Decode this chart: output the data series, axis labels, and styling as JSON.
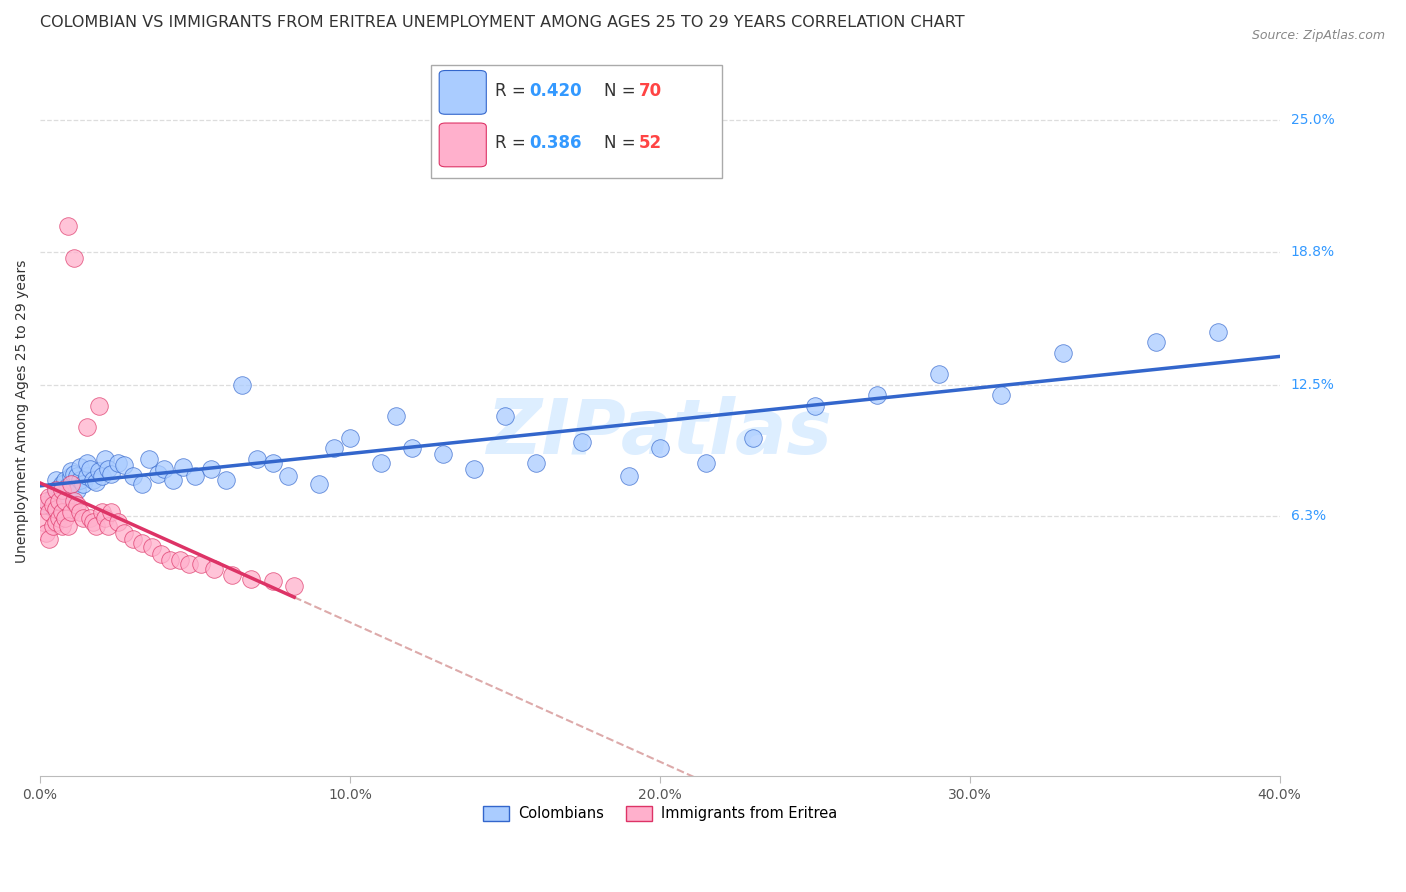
{
  "title": "COLOMBIAN VS IMMIGRANTS FROM ERITREA UNEMPLOYMENT AMONG AGES 25 TO 29 YEARS CORRELATION CHART",
  "source": "Source: ZipAtlas.com",
  "ylabel": "Unemployment Among Ages 25 to 29 years",
  "xlabel_ticks": [
    "0.0%",
    "10.0%",
    "20.0%",
    "30.0%",
    "40.0%"
  ],
  "xlabel_vals": [
    0.0,
    0.1,
    0.2,
    0.3,
    0.4
  ],
  "ylabel_ticks_right": [
    "25.0%",
    "18.8%",
    "12.5%",
    "6.3%"
  ],
  "ylabel_vals_right": [
    0.25,
    0.188,
    0.125,
    0.063
  ],
  "xmin": 0.0,
  "xmax": 0.4,
  "ymin": -0.06,
  "ymax": 0.285,
  "colombian_color": "#AACCFF",
  "eritrea_color": "#FFB0CC",
  "trendline_colombian_color": "#3366CC",
  "trendline_eritrea_color": "#DD3366",
  "trendline_eritrea_dashed_color": "#DDAAAA",
  "legend_R_col": "R = 0.420",
  "legend_N_col": "N = 70",
  "legend_R_eri": "R = 0.386",
  "legend_N_eri": "N = 52",
  "watermark": "ZIPatlas",
  "grid_color": "#DDDDDD",
  "bg_color": "#FFFFFF",
  "title_fontsize": 11.5,
  "axis_fontsize": 10,
  "legend_fontsize": 12,
  "watermark_fontsize": 55,
  "colombian_x": [
    0.003,
    0.004,
    0.005,
    0.005,
    0.006,
    0.006,
    0.007,
    0.007,
    0.008,
    0.008,
    0.009,
    0.009,
    0.01,
    0.01,
    0.01,
    0.011,
    0.011,
    0.012,
    0.012,
    0.013,
    0.013,
    0.014,
    0.015,
    0.015,
    0.016,
    0.017,
    0.018,
    0.019,
    0.02,
    0.021,
    0.022,
    0.023,
    0.025,
    0.027,
    0.03,
    0.033,
    0.035,
    0.038,
    0.04,
    0.043,
    0.046,
    0.05,
    0.055,
    0.06,
    0.065,
    0.07,
    0.075,
    0.08,
    0.09,
    0.095,
    0.1,
    0.11,
    0.115,
    0.12,
    0.13,
    0.14,
    0.15,
    0.16,
    0.175,
    0.19,
    0.2,
    0.215,
    0.23,
    0.25,
    0.27,
    0.29,
    0.31,
    0.33,
    0.36,
    0.38
  ],
  "colombian_y": [
    0.068,
    0.072,
    0.075,
    0.08,
    0.07,
    0.076,
    0.073,
    0.078,
    0.074,
    0.08,
    0.071,
    0.077,
    0.082,
    0.076,
    0.084,
    0.079,
    0.083,
    0.075,
    0.082,
    0.08,
    0.086,
    0.078,
    0.082,
    0.088,
    0.085,
    0.08,
    0.079,
    0.084,
    0.082,
    0.09,
    0.085,
    0.083,
    0.088,
    0.087,
    0.082,
    0.078,
    0.09,
    0.083,
    0.085,
    0.08,
    0.086,
    0.082,
    0.085,
    0.08,
    0.125,
    0.09,
    0.088,
    0.082,
    0.078,
    0.095,
    0.1,
    0.088,
    0.11,
    0.095,
    0.092,
    0.085,
    0.11,
    0.088,
    0.098,
    0.082,
    0.095,
    0.088,
    0.1,
    0.115,
    0.12,
    0.13,
    0.12,
    0.14,
    0.145,
    0.15
  ],
  "eritrea_x": [
    0.001,
    0.001,
    0.002,
    0.002,
    0.003,
    0.003,
    0.003,
    0.004,
    0.004,
    0.005,
    0.005,
    0.005,
    0.006,
    0.006,
    0.007,
    0.007,
    0.007,
    0.008,
    0.008,
    0.009,
    0.009,
    0.01,
    0.01,
    0.011,
    0.011,
    0.012,
    0.013,
    0.014,
    0.015,
    0.016,
    0.017,
    0.018,
    0.019,
    0.02,
    0.021,
    0.022,
    0.023,
    0.025,
    0.027,
    0.03,
    0.033,
    0.036,
    0.039,
    0.042,
    0.045,
    0.048,
    0.052,
    0.056,
    0.062,
    0.068,
    0.075,
    0.082
  ],
  "eritrea_y": [
    0.06,
    0.068,
    0.055,
    0.07,
    0.052,
    0.065,
    0.072,
    0.058,
    0.068,
    0.06,
    0.066,
    0.075,
    0.062,
    0.07,
    0.058,
    0.065,
    0.075,
    0.062,
    0.07,
    0.058,
    0.2,
    0.065,
    0.078,
    0.07,
    0.185,
    0.068,
    0.065,
    0.062,
    0.105,
    0.062,
    0.06,
    0.058,
    0.115,
    0.065,
    0.062,
    0.058,
    0.065,
    0.06,
    0.055,
    0.052,
    0.05,
    0.048,
    0.045,
    0.042,
    0.042,
    0.04,
    0.04,
    0.038,
    0.035,
    0.033,
    0.032,
    0.03
  ]
}
